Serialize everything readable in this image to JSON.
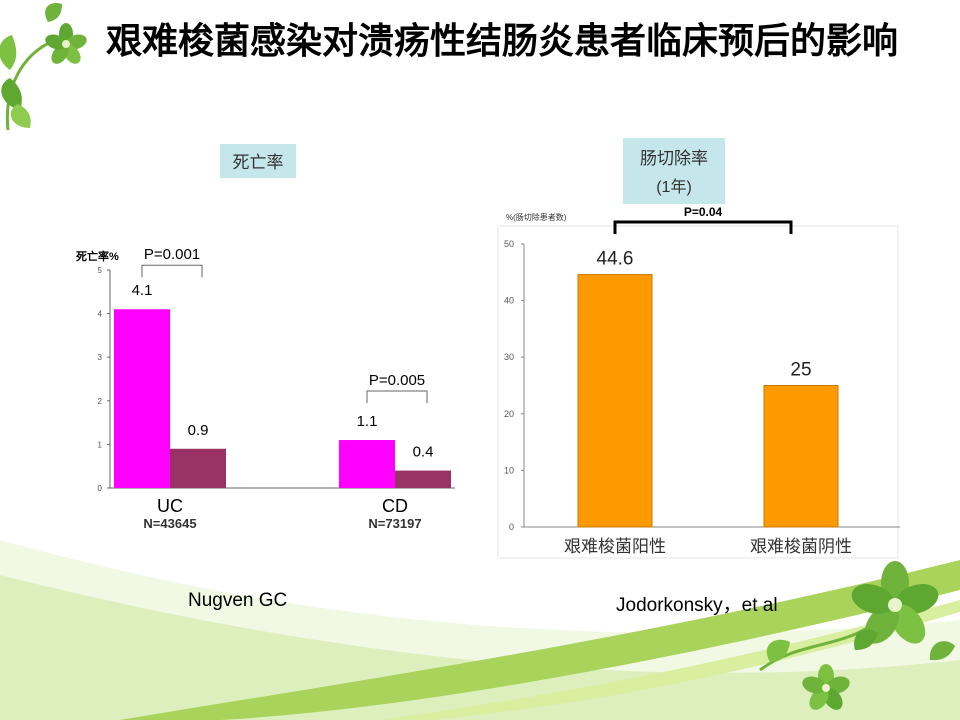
{
  "slide": {
    "title": "艰难梭菌感染对溃疡性结肠炎患者临床预后的影响",
    "left_citation": "Nugven GC",
    "right_citation": "Jodorkonsky，et al"
  },
  "colors": {
    "magenta": "#ff00ff",
    "maroon": "#993366",
    "orange": "#ff9900",
    "label_box": "#c5e6ea",
    "green_decor": "#8cc63f"
  },
  "chart_data": [
    {
      "type": "bar",
      "title": "死亡率",
      "ylabel": "死亡率%",
      "ylim": [
        0,
        5
      ],
      "yticks": [
        "0",
        "1",
        "2",
        "3",
        "4",
        "5"
      ],
      "groups": [
        {
          "label": "UC",
          "n_label": "N=43645",
          "values": [
            4.1,
            0.9
          ],
          "value_labels": [
            "4.1",
            "0.9"
          ],
          "p_value": "P=0.001"
        },
        {
          "label": "CD",
          "n_label": "N=73197",
          "values": [
            1.1,
            0.4
          ],
          "value_labels": [
            "1.1",
            "0.4"
          ],
          "p_value": "P=0.005"
        }
      ]
    },
    {
      "type": "bar",
      "title": "肠切除率",
      "subtitle": "(1年)",
      "ylabel": "%(肠切除患者数)",
      "ylim": [
        0,
        50
      ],
      "yticks": [
        "0",
        "10",
        "20",
        "30",
        "40",
        "50"
      ],
      "categories": [
        "艰难梭菌阳性",
        "艰难梭菌阴性"
      ],
      "values": [
        44.6,
        25
      ],
      "value_labels": [
        "44.6",
        "25"
      ],
      "p_value": "P=0.04"
    }
  ]
}
